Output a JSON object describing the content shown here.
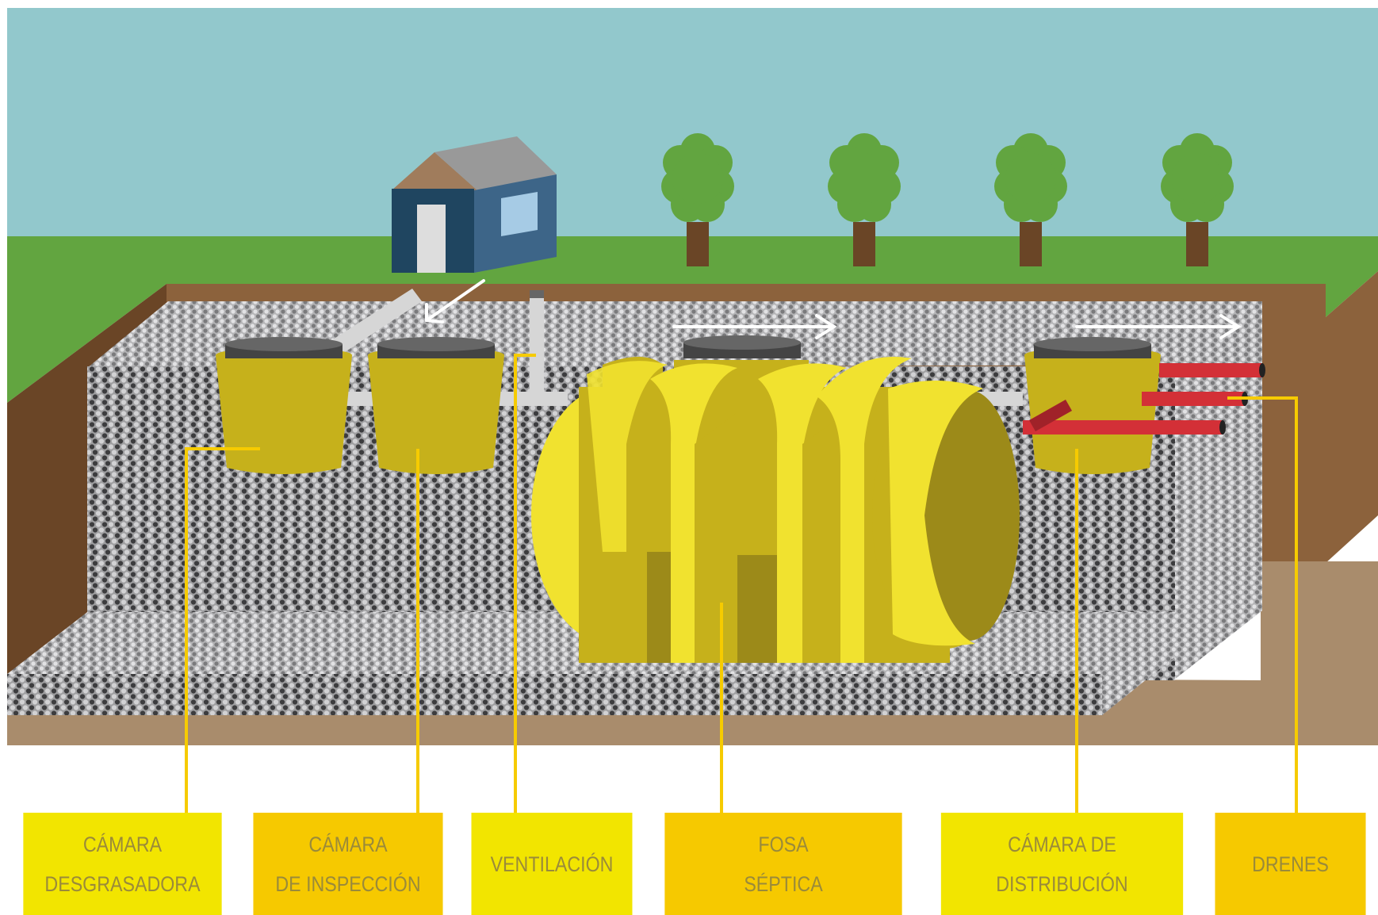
{
  "colors": {
    "sky": "#92c8cc",
    "grass": "#62a540",
    "soil_dark": "#6a4526",
    "soil_light": "#8c623c",
    "soil_bottom": "#a98c6c",
    "gravel": "#a0a0a2",
    "tank_light": "#f1e22f",
    "tank_mid": "#c6b11b",
    "tank_dark": "#9c8a19",
    "chamber": "#c6b11b",
    "lid": "#666666",
    "pipe_gray": "#d6d6d6",
    "drain_red": "#d33037",
    "leader_yellow": "#f6cb00",
    "label_light": "#f2e500",
    "label_dark": "#f6c900",
    "house_front": "#1f4560",
    "house_side": "#3d6588",
    "roof_front": "#a07c5c",
    "roof_side": "#999999",
    "window": "#a6cbe5",
    "trunk": "#6a4526",
    "foliage": "#62a540"
  },
  "icons": [
    "house-icon",
    "tree-icon",
    "flow-arrow-icon"
  ],
  "labels": [
    {
      "id": "camara-desgrasadora",
      "lines": [
        "CÁMARA",
        "DESGRASADORA"
      ],
      "color": "#f2e500"
    },
    {
      "id": "camara-inspeccion",
      "lines": [
        "CÁMARA",
        "DE INSPECCIÓN"
      ],
      "color": "#f6c900"
    },
    {
      "id": "ventilacion",
      "lines": [
        "VENTILACIÓN"
      ],
      "color": "#f2e500"
    },
    {
      "id": "fosa-septica",
      "lines": [
        "FOSA",
        "SÉPTICA"
      ],
      "color": "#f6c900"
    },
    {
      "id": "camara-distribucion",
      "lines": [
        "CÁMARA DE",
        "DISTRIBUCIÓN"
      ],
      "color": "#f2e500"
    },
    {
      "id": "drenes",
      "lines": [
        "DRENES"
      ],
      "color": "#f6c900"
    }
  ]
}
